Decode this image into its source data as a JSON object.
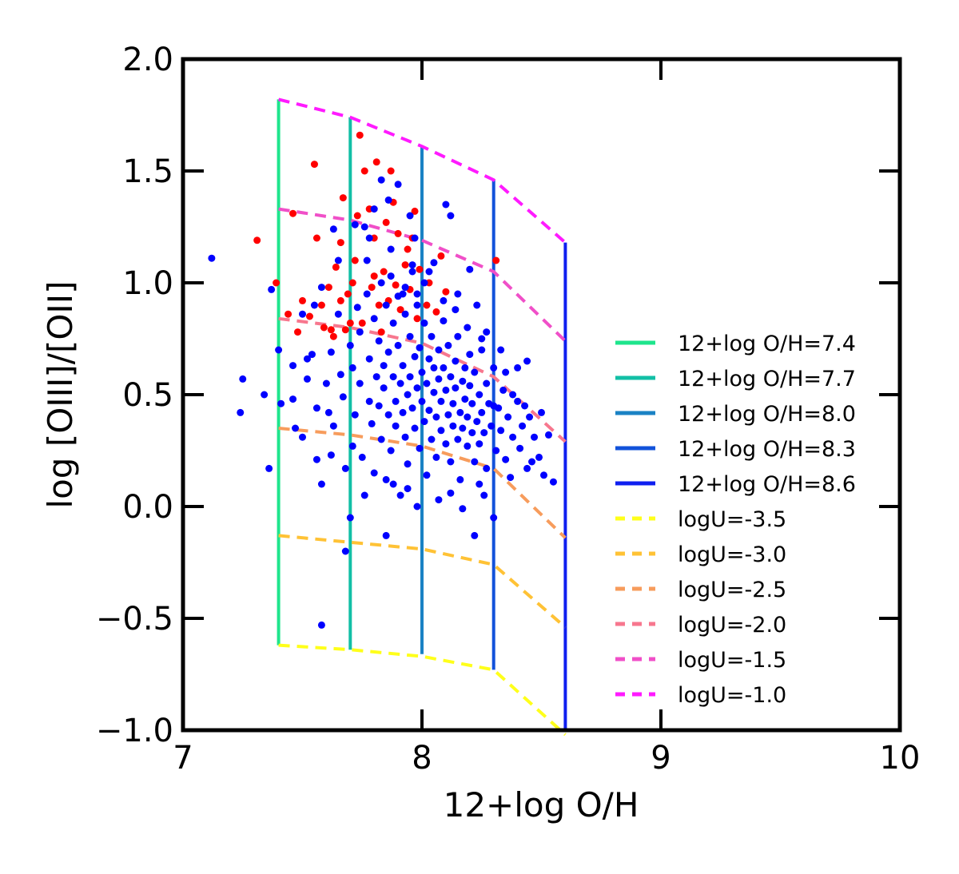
{
  "chart_data": {
    "type": "scatter",
    "title": "",
    "xlabel": "12+log O/H",
    "ylabel": "log [OIII]/[OII]",
    "xlim": [
      7,
      10
    ],
    "ylim": [
      -1.0,
      2.0
    ],
    "xticks": [
      7,
      8,
      9,
      10
    ],
    "xtick_labels": [
      "7",
      "8",
      "9",
      "10"
    ],
    "yticks": [
      -1.0,
      -0.5,
      0.0,
      0.5,
      1.0,
      1.5,
      2.0
    ],
    "ytick_labels": [
      "−1.0",
      "−0.5",
      "0.0",
      "0.5",
      "1.0",
      "1.5",
      "2.0"
    ],
    "grid": false,
    "legend_position": "right",
    "metallicity_lines": [
      {
        "name": "12+log O/H=7.4",
        "x": 7.4,
        "y_range": [
          -0.62,
          1.82
        ],
        "color": "#1ee58c"
      },
      {
        "name": "12+log O/H=7.7",
        "x": 7.7,
        "y_range": [
          -0.64,
          1.74
        ],
        "color": "#12bfa6"
      },
      {
        "name": "12+log O/H=8.0",
        "x": 8.0,
        "y_range": [
          -0.66,
          1.61
        ],
        "color": "#1a82c4"
      },
      {
        "name": "12+log O/H=8.3",
        "x": 8.3,
        "y_range": [
          -0.73,
          1.46
        ],
        "color": "#1252da"
      },
      {
        "name": "12+log O/H=8.6",
        "x": 8.6,
        "y_range": [
          -1.0,
          1.18
        ],
        "color": "#0f1ff0"
      }
    ],
    "ionization_lines": [
      {
        "name": "logU=-3.5",
        "x": [
          7.4,
          7.7,
          8.0,
          8.3,
          8.6
        ],
        "y": [
          -0.62,
          -0.64,
          -0.67,
          -0.73,
          -1.02
        ],
        "color": "#ffff1a"
      },
      {
        "name": "logU=-3.0",
        "x": [
          7.4,
          7.7,
          8.0,
          8.3,
          8.6
        ],
        "y": [
          -0.13,
          -0.16,
          -0.19,
          -0.26,
          -0.54
        ],
        "color": "#ffc235"
      },
      {
        "name": "logU=-2.5",
        "x": [
          7.4,
          7.7,
          8.0,
          8.3,
          8.6
        ],
        "y": [
          0.35,
          0.32,
          0.27,
          0.17,
          -0.14
        ],
        "color": "#f79c5c"
      },
      {
        "name": "logU=-2.0",
        "x": [
          7.4,
          7.7,
          8.0,
          8.3,
          8.6
        ],
        "y": [
          0.84,
          0.8,
          0.73,
          0.58,
          0.29
        ],
        "color": "#f7778e"
      },
      {
        "name": "logU=-1.5",
        "x": [
          7.4,
          7.7,
          8.0,
          8.3,
          8.6
        ],
        "y": [
          1.33,
          1.28,
          1.19,
          1.05,
          0.74
        ],
        "color": "#f04fc8"
      },
      {
        "name": "logU=-1.0",
        "x": [
          7.4,
          7.7,
          8.0,
          8.3,
          8.6
        ],
        "y": [
          1.82,
          1.74,
          1.61,
          1.46,
          1.18
        ],
        "color": "#ff1aff"
      }
    ],
    "scatter_series": [
      {
        "color": "#ff0000",
        "points": [
          [
            7.31,
            1.19
          ],
          [
            7.39,
            1.0
          ],
          [
            7.44,
            0.86
          ],
          [
            7.46,
            1.31
          ],
          [
            7.48,
            0.78
          ],
          [
            7.5,
            0.92
          ],
          [
            7.53,
            0.85
          ],
          [
            7.55,
            1.53
          ],
          [
            7.56,
            1.2
          ],
          [
            7.58,
            0.9
          ],
          [
            7.59,
            0.8
          ],
          [
            7.62,
            0.79
          ],
          [
            7.63,
            0.76
          ],
          [
            7.64,
            1.07
          ],
          [
            7.66,
            0.92
          ],
          [
            7.67,
            1.38
          ],
          [
            7.68,
            0.79
          ],
          [
            7.7,
            0.82
          ],
          [
            7.71,
            1.0
          ],
          [
            7.73,
            1.3
          ],
          [
            7.74,
            1.66
          ],
          [
            7.75,
            0.82
          ],
          [
            7.76,
            1.5
          ],
          [
            7.78,
            1.33
          ],
          [
            7.79,
            0.98
          ],
          [
            7.8,
            1.2
          ],
          [
            7.81,
            1.54
          ],
          [
            7.83,
            0.78
          ],
          [
            7.84,
            1.05
          ],
          [
            7.85,
            1.27
          ],
          [
            7.86,
            0.92
          ],
          [
            7.87,
            1.5
          ],
          [
            7.88,
            1.36
          ],
          [
            7.9,
            1.22
          ],
          [
            7.91,
            0.88
          ],
          [
            7.93,
            1.08
          ],
          [
            7.95,
            0.97
          ],
          [
            7.96,
            1.2
          ],
          [
            7.98,
            0.84
          ],
          [
            7.99,
            1.06
          ],
          [
            8.02,
            0.9
          ],
          [
            8.03,
            1.0
          ],
          [
            8.06,
            0.87
          ],
          [
            8.08,
            1.12
          ],
          [
            8.1,
            0.96
          ],
          [
            7.97,
            1.32
          ],
          [
            7.72,
            1.1
          ],
          [
            7.69,
            0.95
          ],
          [
            7.61,
            0.98
          ],
          [
            7.82,
            0.9
          ],
          [
            8.31,
            1.1
          ],
          [
            7.94,
            1.15
          ],
          [
            7.8,
            1.03
          ],
          [
            7.89,
            0.99
          ],
          [
            7.66,
            1.18
          ]
        ]
      },
      {
        "color": "#0000ff",
        "points": [
          [
            7.12,
            1.11
          ],
          [
            7.25,
            0.57
          ],
          [
            7.24,
            0.42
          ],
          [
            7.36,
            0.17
          ],
          [
            7.34,
            0.5
          ],
          [
            7.37,
            0.97
          ],
          [
            7.4,
            0.7
          ],
          [
            7.41,
            0.46
          ],
          [
            7.46,
            0.63
          ],
          [
            7.46,
            0.48
          ],
          [
            7.5,
            0.86
          ],
          [
            7.5,
            0.31
          ],
          [
            7.52,
            0.57
          ],
          [
            7.54,
            0.68
          ],
          [
            7.56,
            0.44
          ],
          [
            7.56,
            0.21
          ],
          [
            7.58,
            0.98
          ],
          [
            7.58,
            -0.53
          ],
          [
            7.6,
            0.55
          ],
          [
            7.61,
            0.42
          ],
          [
            7.62,
            0.69
          ],
          [
            7.63,
            1.24
          ],
          [
            7.63,
            0.36
          ],
          [
            7.65,
            0.86
          ],
          [
            7.66,
            0.59
          ],
          [
            7.67,
            0.49
          ],
          [
            7.68,
            0.17
          ],
          [
            7.68,
            -0.2
          ],
          [
            7.7,
            0.72
          ],
          [
            7.71,
            0.62
          ],
          [
            7.71,
            0.27
          ],
          [
            7.72,
            0.41
          ],
          [
            7.73,
            0.89
          ],
          [
            7.74,
            0.78
          ],
          [
            7.74,
            0.55
          ],
          [
            7.75,
            0.22
          ],
          [
            7.76,
            1.25
          ],
          [
            7.77,
            1.1
          ],
          [
            7.77,
            0.95
          ],
          [
            7.78,
            0.66
          ],
          [
            7.78,
            0.47
          ],
          [
            7.79,
            0.37
          ],
          [
            7.8,
            0.15
          ],
          [
            7.8,
            0.84
          ],
          [
            7.81,
            0.58
          ],
          [
            7.82,
            0.74
          ],
          [
            7.82,
            0.45
          ],
          [
            7.83,
            1.0
          ],
          [
            7.83,
            0.3
          ],
          [
            7.84,
            0.63
          ],
          [
            7.84,
            0.53
          ],
          [
            7.85,
            0.9
          ],
          [
            7.85,
            0.12
          ],
          [
            7.86,
            0.69
          ],
          [
            7.86,
            0.41
          ],
          [
            7.87,
            1.15
          ],
          [
            7.87,
            0.25
          ],
          [
            7.88,
            0.82
          ],
          [
            7.88,
            0.58
          ],
          [
            7.89,
            0.47
          ],
          [
            7.89,
            0.36
          ],
          [
            7.9,
            0.94
          ],
          [
            7.9,
            0.72
          ],
          [
            7.91,
            0.55
          ],
          [
            7.91,
            0.05
          ],
          [
            7.92,
            0.63
          ],
          [
            7.92,
            0.42
          ],
          [
            7.93,
            0.86
          ],
          [
            7.93,
            0.31
          ],
          [
            7.94,
            0.5
          ],
          [
            7.94,
            0.19
          ],
          [
            7.95,
            0.76
          ],
          [
            7.95,
            0.58
          ],
          [
            7.96,
            0.44
          ],
          [
            7.96,
            1.08
          ],
          [
            7.97,
            0.67
          ],
          [
            7.97,
            0.35
          ],
          [
            7.98,
            0.9
          ],
          [
            7.98,
            0.53
          ],
          [
            7.99,
            0.26
          ],
          [
            7.99,
            0.71
          ],
          [
            8.0,
            0.47
          ],
          [
            8.0,
            0.6
          ],
          [
            8.01,
            0.38
          ],
          [
            8.01,
            0.82
          ],
          [
            8.02,
            0.55
          ],
          [
            8.02,
            0.14
          ],
          [
            8.03,
            0.66
          ],
          [
            8.03,
            0.43
          ],
          [
            8.04,
            0.3
          ],
          [
            8.04,
            0.76
          ],
          [
            8.05,
            0.51
          ],
          [
            8.05,
            0.62
          ],
          [
            8.06,
            0.22
          ],
          [
            8.06,
            0.4
          ],
          [
            8.07,
            0.7
          ],
          [
            8.07,
            0.57
          ],
          [
            8.08,
            0.34
          ],
          [
            8.08,
            0.47
          ],
          [
            8.09,
            0.83
          ],
          [
            8.09,
            0.62
          ],
          [
            8.1,
            0.28
          ],
          [
            8.1,
            0.52
          ],
          [
            8.11,
            0.41
          ],
          [
            8.11,
            0.72
          ],
          [
            8.12,
            0.58
          ],
          [
            8.12,
            0.2
          ],
          [
            8.13,
            0.46
          ],
          [
            8.13,
            0.36
          ],
          [
            8.14,
            0.65
          ],
          [
            8.14,
            0.53
          ],
          [
            8.15,
            0.3
          ],
          [
            8.15,
            0.76
          ],
          [
            8.16,
            0.42
          ],
          [
            8.16,
            0.12
          ],
          [
            8.17,
            0.56
          ],
          [
            8.17,
            0.35
          ],
          [
            8.18,
            0.62
          ],
          [
            8.18,
            0.48
          ],
          [
            8.19,
            0.27
          ],
          [
            8.19,
            0.4
          ],
          [
            8.2,
            0.68
          ],
          [
            8.2,
            0.54
          ],
          [
            8.21,
            0.33
          ],
          [
            8.21,
            0.46
          ],
          [
            8.22,
            0.2
          ],
          [
            8.22,
            0.6
          ],
          [
            8.23,
            0.38
          ],
          [
            8.24,
            0.5
          ],
          [
            8.24,
            0.28
          ],
          [
            8.25,
            0.75
          ],
          [
            8.25,
            0.42
          ],
          [
            8.26,
            0.33
          ],
          [
            8.27,
            0.55
          ],
          [
            8.27,
            0.17
          ],
          [
            8.28,
            0.46
          ],
          [
            8.29,
            0.36
          ],
          [
            8.3,
            0.62
          ],
          [
            8.31,
            0.25
          ],
          [
            8.32,
            0.44
          ],
          [
            8.33,
            0.34
          ],
          [
            8.34,
            0.52
          ],
          [
            8.35,
            0.21
          ],
          [
            8.36,
            0.4
          ],
          [
            8.37,
            0.13
          ],
          [
            8.38,
            0.31
          ],
          [
            8.4,
            0.47
          ],
          [
            8.41,
            0.26
          ],
          [
            8.42,
            0.36
          ],
          [
            8.44,
            0.17
          ],
          [
            8.45,
            0.4
          ],
          [
            8.47,
            0.31
          ],
          [
            8.49,
            0.22
          ],
          [
            8.51,
            0.14
          ],
          [
            8.53,
            0.32
          ],
          [
            8.55,
            0.11
          ],
          [
            8.44,
            0.65
          ],
          [
            8.5,
            0.42
          ],
          [
            8.22,
            -0.13
          ],
          [
            8.3,
            -0.05
          ],
          [
            8.27,
            0.78
          ],
          [
            8.25,
            0.7
          ],
          [
            7.85,
            -0.13
          ],
          [
            8.17,
            -0.01
          ],
          [
            8.05,
            1.09
          ],
          [
            7.95,
            1.3
          ],
          [
            7.83,
            1.46
          ],
          [
            7.9,
            1.44
          ],
          [
            7.97,
            1.2
          ],
          [
            8.12,
            1.3
          ],
          [
            8.1,
            1.35
          ],
          [
            7.8,
            1.33
          ],
          [
            7.72,
            1.26
          ],
          [
            7.65,
            1.1
          ],
          [
            7.78,
            1.2
          ],
          [
            8.03,
            1.05
          ],
          [
            8.15,
            0.95
          ],
          [
            8.2,
            1.06
          ],
          [
            7.86,
            1.37
          ],
          [
            7.55,
            0.9
          ],
          [
            8.35,
            0.6
          ],
          [
            8.4,
            0.62
          ],
          [
            8.33,
            0.7
          ],
          [
            7.98,
            0.0
          ],
          [
            8.07,
            0.03
          ],
          [
            8.12,
            0.06
          ],
          [
            7.94,
            0.08
          ],
          [
            7.88,
            0.1
          ],
          [
            7.76,
            0.05
          ],
          [
            8.24,
            0.1
          ],
          [
            7.62,
            0.23
          ],
          [
            7.52,
            0.66
          ],
          [
            7.47,
            0.35
          ],
          [
            7.58,
            0.1
          ],
          [
            7.7,
            -0.05
          ],
          [
            8.3,
            0.45
          ],
          [
            8.38,
            0.5
          ],
          [
            8.43,
            0.45
          ],
          [
            8.46,
            0.2
          ],
          [
            8.26,
            0.05
          ],
          [
            7.93,
            0.98
          ],
          [
            7.98,
            0.95
          ],
          [
            8.01,
            1.0
          ],
          [
            7.96,
            1.05
          ],
          [
            8.14,
            0.88
          ],
          [
            8.19,
            0.8
          ],
          [
            8.23,
            0.9
          ],
          [
            8.09,
            0.92
          ],
          [
            7.92,
            0.95
          ],
          [
            7.87,
            1.03
          ]
        ]
      }
    ]
  }
}
